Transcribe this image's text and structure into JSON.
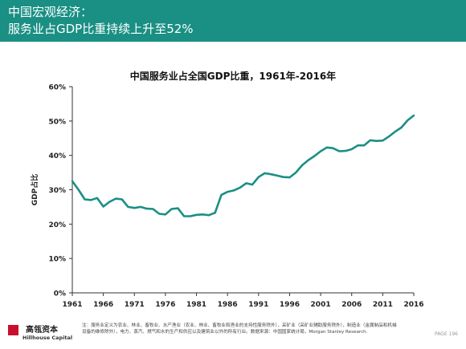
{
  "header": {
    "title_line1": "中国宏观经济：",
    "title_line2": "服务业占GDP比重持续上升至52%",
    "background_color": "#1a8f84"
  },
  "chart_data": {
    "type": "line",
    "title": "中国服务业占全国GDP比重，1961年-2016年",
    "ylabel": "GDP占比",
    "xlabel": "",
    "xlim": [
      1961,
      2016
    ],
    "ylim": [
      0,
      60
    ],
    "x_ticks": [
      "1961",
      "1966",
      "1971",
      "1976",
      "1981",
      "1986",
      "1991",
      "1996",
      "2001",
      "2006",
      "2011",
      "2016"
    ],
    "y_ticks": [
      "0%",
      "10%",
      "20%",
      "30%",
      "40%",
      "50%",
      "60%"
    ],
    "grid": false,
    "line_color": "#1a8f84",
    "series": [
      {
        "x": [
          1961,
          1962,
          1963,
          1964,
          1965,
          1966,
          1967,
          1968,
          1969,
          1970,
          1971,
          1972,
          1973,
          1974,
          1975,
          1976,
          1977,
          1978,
          1979,
          1980,
          1981,
          1982,
          1983,
          1984,
          1985,
          1986,
          1987,
          1988,
          1989,
          1990,
          1991,
          1992,
          1993,
          1994,
          1995,
          1996,
          1997,
          1998,
          1999,
          2000,
          2001,
          2002,
          2003,
          2004,
          2005,
          2006,
          2007,
          2008,
          2009,
          2010,
          2011,
          2012,
          2013,
          2014,
          2015,
          2016
        ],
        "values": [
          32.5,
          30.0,
          27.2,
          27.0,
          27.6,
          25.1,
          26.5,
          27.4,
          27.2,
          25.0,
          24.7,
          25.0,
          24.5,
          24.4,
          23.0,
          22.8,
          24.4,
          24.6,
          22.3,
          22.3,
          22.7,
          22.8,
          22.6,
          23.3,
          28.5,
          29.4,
          29.8,
          30.6,
          31.9,
          31.5,
          33.7,
          34.8,
          34.5,
          34.1,
          33.7,
          33.6,
          35.0,
          37.1,
          38.6,
          39.8,
          41.2,
          42.3,
          42.1,
          41.2,
          41.3,
          41.8,
          42.9,
          42.9,
          44.4,
          44.2,
          44.3,
          45.5,
          46.9,
          48.1,
          50.2,
          51.6
        ]
      }
    ]
  },
  "footnote": "注：服务业定义为农业、林业、畜牧业、水产渔业（农业、林业、畜牧业和渔业的支持性服务除外），采矿业（采矿业辅助服务除外），制造业（金属制品和机械设备的维修除外），电力、蒸汽、燃气和水的生产和供应以及建筑业以外的所有行业。数据来源：中国国家统计局，Morgan Stanley Research.",
  "logo": {
    "cn": "高瓴资本",
    "en": "Hillhouse Capital"
  },
  "page_number": "PAGE 196"
}
